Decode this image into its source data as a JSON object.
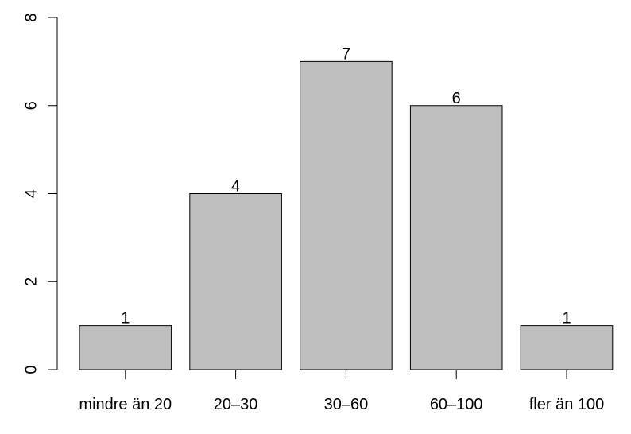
{
  "chart_data": {
    "type": "bar",
    "categories": [
      "mindre än 20",
      "20–30",
      "30–60",
      "60–100",
      "fler än 100"
    ],
    "values": [
      1,
      4,
      7,
      6,
      1
    ],
    "color": "#bebebe",
    "ylim": [
      0,
      8
    ],
    "yticks": [
      0,
      2,
      4,
      6,
      8
    ]
  }
}
